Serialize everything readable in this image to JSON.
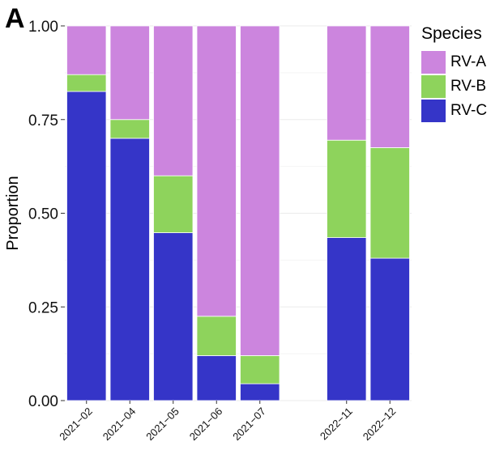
{
  "panel_label": "A",
  "chart_data": {
    "type": "bar",
    "stacked": true,
    "categories": [
      "2021−02",
      "2021−04",
      "2021−05",
      "2021−06",
      "2021−07",
      "",
      "2022−11",
      "2022−12"
    ],
    "series": [
      {
        "name": "RV-C",
        "color": "#3535c8",
        "values": [
          0.825,
          0.7,
          0.448,
          0.12,
          0.045,
          null,
          0.435,
          0.38
        ]
      },
      {
        "name": "RV-B",
        "color": "#8ed35c",
        "values": [
          0.045,
          0.05,
          0.152,
          0.105,
          0.075,
          null,
          0.26,
          0.295
        ]
      },
      {
        "name": "RV-A",
        "color": "#cc85de",
        "values": [
          0.13,
          0.25,
          0.4,
          0.775,
          0.88,
          null,
          0.305,
          0.325
        ]
      }
    ],
    "xlabel": "",
    "ylabel": "Proportion",
    "ylim": [
      0,
      1
    ],
    "yticks": [
      "0.00",
      "0.25",
      "0.50",
      "0.75",
      "1.00"
    ],
    "grid": true,
    "legend": {
      "title": "Species",
      "position": "right",
      "entries": [
        {
          "label": "RV-A",
          "color": "#cc85de"
        },
        {
          "label": "RV-B",
          "color": "#8ed35c"
        },
        {
          "label": "RV-C",
          "color": "#3535c8"
        }
      ]
    }
  }
}
